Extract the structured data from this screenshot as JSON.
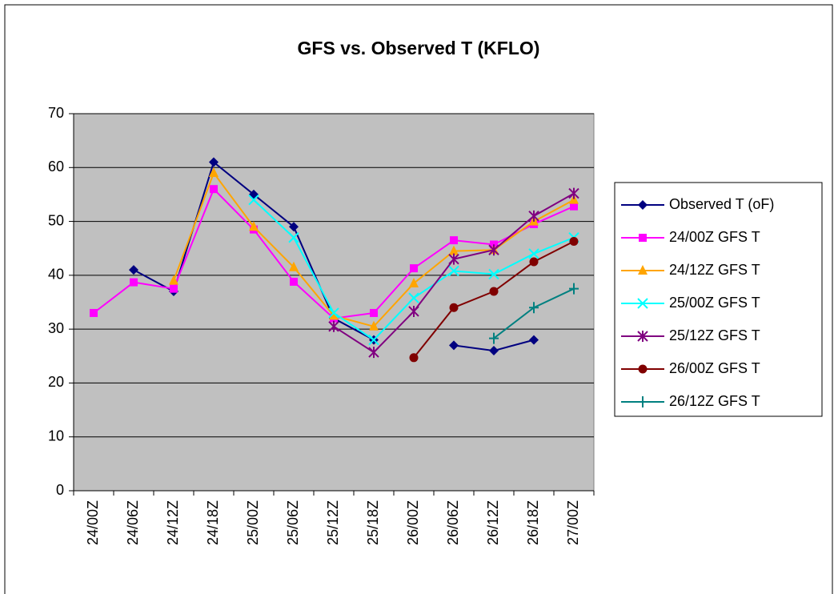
{
  "chart_data": {
    "type": "line",
    "title": "GFS vs. Observed T (KFLO)",
    "categories": [
      "24/00Z",
      "24/06Z",
      "24/12Z",
      "24/18Z",
      "25/00Z",
      "25/06Z",
      "25/12Z",
      "25/18Z",
      "26/00Z",
      "26/06Z",
      "26/12Z",
      "26/18Z",
      "27/00Z"
    ],
    "ylim": [
      0,
      70
    ],
    "yticks": [
      0,
      10,
      20,
      30,
      40,
      50,
      60,
      70
    ],
    "grid": true,
    "series": [
      {
        "name": "Observed T (oF)",
        "color": "#000080",
        "marker": "diamond",
        "values": [
          null,
          41,
          37,
          61,
          55,
          49,
          32,
          28,
          null,
          27,
          26,
          28,
          null
        ]
      },
      {
        "name": "24/00Z GFS T",
        "color": "#ff00ff",
        "marker": "square",
        "values": [
          33,
          38.7,
          37.5,
          56,
          48.5,
          38.8,
          32,
          33,
          41.3,
          46.5,
          45.7,
          49.5,
          52.8
        ]
      },
      {
        "name": "24/12Z GFS T",
        "color": "#ffa500",
        "marker": "triangle",
        "values": [
          null,
          null,
          39,
          59,
          49,
          41.5,
          32.5,
          30.5,
          38.5,
          44.5,
          44.7,
          50,
          54
        ]
      },
      {
        "name": "25/00Z GFS T",
        "color": "#00ffff",
        "marker": "x",
        "values": [
          null,
          null,
          null,
          null,
          54,
          47,
          33,
          28,
          35.8,
          40.8,
          40.2,
          44,
          47
        ]
      },
      {
        "name": "25/12Z GFS T",
        "color": "#800080",
        "marker": "asterisk",
        "values": [
          null,
          null,
          null,
          null,
          null,
          null,
          30.5,
          25.7,
          33.3,
          43,
          44.7,
          51,
          55.2
        ]
      },
      {
        "name": "26/00Z GFS T",
        "color": "#800000",
        "marker": "circle",
        "values": [
          null,
          null,
          null,
          null,
          null,
          null,
          null,
          null,
          24.7,
          34,
          37,
          42.5,
          46.3
        ]
      },
      {
        "name": "26/12Z GFS T",
        "color": "#008080",
        "marker": "plus",
        "values": [
          null,
          null,
          null,
          null,
          null,
          null,
          null,
          null,
          null,
          null,
          28.3,
          34,
          37.5
        ]
      }
    ]
  }
}
